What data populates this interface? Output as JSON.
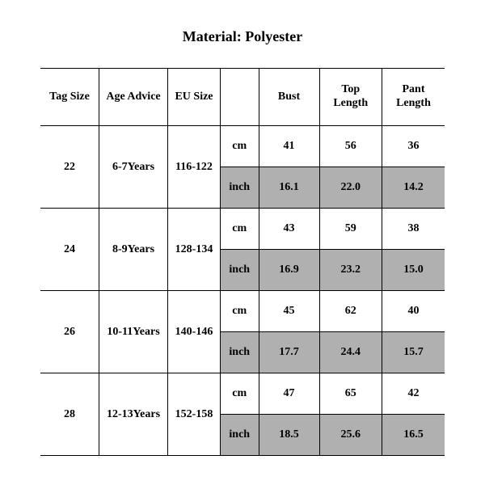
{
  "title": "Material: Polyester",
  "table": {
    "type": "table",
    "background_color": "#ffffff",
    "border_color": "#000000",
    "text_color": "#000000",
    "shade_color": "#b0b0b0",
    "header_fontsize": 14,
    "cell_fontsize": 14,
    "font_weight": "bold",
    "columns": [
      {
        "key": "tag_size",
        "label": "Tag Size",
        "width_pct": 14.5
      },
      {
        "key": "age_advice",
        "label": "Age Advice",
        "width_pct": 17
      },
      {
        "key": "eu_size",
        "label": "EU Size",
        "width_pct": 13
      },
      {
        "key": "unit",
        "label": "",
        "width_pct": 9.5
      },
      {
        "key": "bust",
        "label": "Bust",
        "width_pct": 15
      },
      {
        "key": "top_length",
        "label": "Top Length",
        "width_pct": 15.5
      },
      {
        "key": "pant_length",
        "label": "Pant Length",
        "width_pct": 15.5
      }
    ],
    "unit_labels": {
      "cm": "cm",
      "inch": "inch"
    },
    "rows": [
      {
        "tag_size": "22",
        "age_advice": "6-7Years",
        "eu_size": "116-122",
        "cm": {
          "bust": "41",
          "top_length": "56",
          "pant_length": "36"
        },
        "inch": {
          "bust": "16.1",
          "top_length": "22.0",
          "pant_length": "14.2"
        }
      },
      {
        "tag_size": "24",
        "age_advice": "8-9Years",
        "eu_size": "128-134",
        "cm": {
          "bust": "43",
          "top_length": "59",
          "pant_length": "38"
        },
        "inch": {
          "bust": "16.9",
          "top_length": "23.2",
          "pant_length": "15.0"
        }
      },
      {
        "tag_size": "26",
        "age_advice": "10-11Years",
        "eu_size": "140-146",
        "cm": {
          "bust": "45",
          "top_length": "62",
          "pant_length": "40"
        },
        "inch": {
          "bust": "17.7",
          "top_length": "24.4",
          "pant_length": "15.7"
        }
      },
      {
        "tag_size": "28",
        "age_advice": "12-13Years",
        "eu_size": "152-158",
        "cm": {
          "bust": "47",
          "top_length": "65",
          "pant_length": "42"
        },
        "inch": {
          "bust": "18.5",
          "top_length": "25.6",
          "pant_length": "16.5"
        }
      }
    ]
  }
}
